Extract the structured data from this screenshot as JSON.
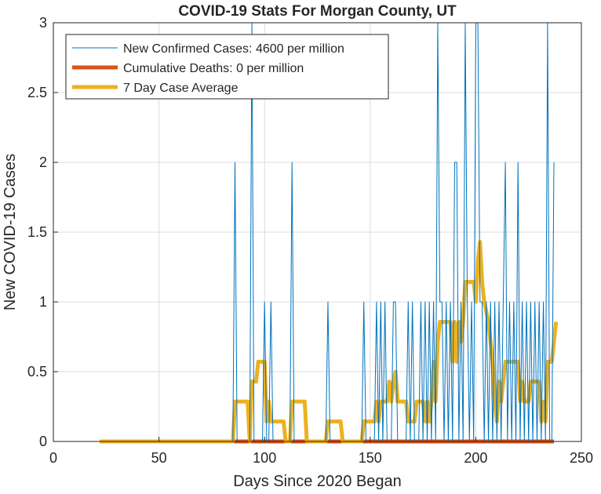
{
  "chart_data": {
    "type": "line",
    "title": "COVID-19 Stats For Morgan County, UT",
    "xlabel": "Days Since 2020 Began",
    "ylabel": "New COVID-19 Cases",
    "xlim": [
      0,
      250
    ],
    "ylim": [
      0,
      3
    ],
    "xticks": [
      "0",
      "50",
      "100",
      "150",
      "200",
      "250"
    ],
    "yticks": [
      "0",
      "0.5",
      "1",
      "1.5",
      "2",
      "2.5",
      "3"
    ],
    "grid": true,
    "legend_position": "top-left",
    "series": [
      {
        "name": "New Confirmed Cases: 4600 per million",
        "color": "#0072BD",
        "points": [
          [
            22,
            0
          ],
          [
            85,
            0
          ],
          [
            86,
            2
          ],
          [
            87,
            0
          ],
          [
            93,
            0
          ],
          [
            94,
            3
          ],
          [
            95,
            0
          ],
          [
            99,
            0
          ],
          [
            100,
            1
          ],
          [
            101,
            0
          ],
          [
            102,
            0
          ],
          [
            103,
            1
          ],
          [
            104,
            0
          ],
          [
            112,
            0
          ],
          [
            113,
            2
          ],
          [
            114,
            0
          ],
          [
            129,
            0
          ],
          [
            130,
            1
          ],
          [
            131,
            0
          ],
          [
            146,
            0
          ],
          [
            147,
            1
          ],
          [
            148,
            0
          ],
          [
            152,
            0
          ],
          [
            153,
            1
          ],
          [
            154,
            0
          ],
          [
            155,
            1
          ],
          [
            156,
            0
          ],
          [
            157,
            1
          ],
          [
            158,
            0
          ],
          [
            160,
            0
          ],
          [
            161,
            1
          ],
          [
            162,
            1
          ],
          [
            163,
            0
          ],
          [
            167,
            0
          ],
          [
            168,
            1
          ],
          [
            169,
            0
          ],
          [
            170,
            1
          ],
          [
            171,
            0
          ],
          [
            173,
            0
          ],
          [
            174,
            1
          ],
          [
            175,
            0
          ],
          [
            176,
            1
          ],
          [
            177,
            0
          ],
          [
            178,
            1
          ],
          [
            179,
            0
          ],
          [
            180,
            1
          ],
          [
            181,
            0
          ],
          [
            182,
            3
          ],
          [
            183,
            1
          ],
          [
            184,
            1
          ],
          [
            185,
            0
          ],
          [
            186,
            1
          ],
          [
            187,
            0
          ],
          [
            188,
            1
          ],
          [
            189,
            0
          ],
          [
            190,
            2
          ],
          [
            191,
            2
          ],
          [
            192,
            0
          ],
          [
            193,
            1
          ],
          [
            194,
            0
          ],
          [
            195,
            3
          ],
          [
            196,
            1
          ],
          [
            197,
            0
          ],
          [
            198,
            1
          ],
          [
            199,
            0
          ],
          [
            200,
            3
          ],
          [
            201,
            3
          ],
          [
            202,
            1
          ],
          [
            203,
            1
          ],
          [
            204,
            0
          ],
          [
            205,
            1
          ],
          [
            206,
            0
          ],
          [
            207,
            1
          ],
          [
            208,
            0
          ],
          [
            209,
            1
          ],
          [
            210,
            0
          ],
          [
            211,
            1
          ],
          [
            212,
            0
          ],
          [
            213,
            1
          ],
          [
            214,
            2
          ],
          [
            215,
            0
          ],
          [
            216,
            1
          ],
          [
            217,
            0
          ],
          [
            218,
            1
          ],
          [
            219,
            0
          ],
          [
            220,
            2
          ],
          [
            221,
            0
          ],
          [
            222,
            1
          ],
          [
            223,
            0
          ],
          [
            224,
            1
          ],
          [
            225,
            0
          ],
          [
            226,
            1
          ],
          [
            227,
            0
          ],
          [
            228,
            1
          ],
          [
            229,
            0
          ],
          [
            230,
            1
          ],
          [
            231,
            0
          ],
          [
            232,
            1
          ],
          [
            233,
            0
          ],
          [
            234,
            3
          ],
          [
            235,
            0
          ],
          [
            236,
            0
          ],
          [
            237,
            2
          ]
        ]
      },
      {
        "name": "Cumulative Deaths: 0 per million",
        "color": "#D95319",
        "points": [
          [
            22,
            0
          ],
          [
            237,
            0
          ]
        ]
      },
      {
        "name": "7 Day Case Average",
        "color": "#EDB120",
        "points": [
          [
            22,
            0
          ],
          [
            85,
            0
          ],
          [
            86,
            0.286
          ],
          [
            92,
            0.286
          ],
          [
            93,
            0
          ],
          [
            94,
            0.429
          ],
          [
            96,
            0.429
          ],
          [
            97,
            0.571
          ],
          [
            100,
            0.571
          ],
          [
            101,
            0.143
          ],
          [
            102,
            0.286
          ],
          [
            103,
            0.143
          ],
          [
            108,
            0.143
          ],
          [
            109,
            0.143
          ],
          [
            110,
            0
          ],
          [
            112,
            0
          ],
          [
            113,
            0.286
          ],
          [
            119,
            0.286
          ],
          [
            120,
            0
          ],
          [
            129,
            0
          ],
          [
            130,
            0.143
          ],
          [
            136,
            0.143
          ],
          [
            137,
            0
          ],
          [
            146,
            0
          ],
          [
            147,
            0.143
          ],
          [
            152,
            0.143
          ],
          [
            153,
            0.286
          ],
          [
            154,
            0.143
          ],
          [
            155,
            0.286
          ],
          [
            157,
            0.286
          ],
          [
            158,
            0.286
          ],
          [
            159,
            0.429
          ],
          [
            160,
            0.286
          ],
          [
            161,
            0.429
          ],
          [
            162,
            0.5
          ],
          [
            163,
            0.286
          ],
          [
            167,
            0.286
          ],
          [
            168,
            0.143
          ],
          [
            171,
            0.143
          ],
          [
            172,
            0.286
          ],
          [
            175,
            0.286
          ],
          [
            176,
            0.143
          ],
          [
            177,
            0.286
          ],
          [
            178,
            0.143
          ],
          [
            179,
            0.286
          ],
          [
            180,
            0.571
          ],
          [
            181,
            0.286
          ],
          [
            182,
            0.714
          ],
          [
            183,
            0.857
          ],
          [
            188,
            0.857
          ],
          [
            189,
            0.571
          ],
          [
            190,
            0.857
          ],
          [
            191,
            0.571
          ],
          [
            192,
            0.857
          ],
          [
            193,
            0.714
          ],
          [
            194,
            0.857
          ],
          [
            195,
            1.143
          ],
          [
            199,
            1.143
          ],
          [
            200,
            1
          ],
          [
            201,
            1.286
          ],
          [
            202,
            1.429
          ],
          [
            203,
            1.143
          ],
          [
            204,
            1
          ],
          [
            206,
            0.857
          ],
          [
            207,
            0.714
          ],
          [
            208,
            0.571
          ],
          [
            209,
            0.286
          ],
          [
            210,
            0.143
          ],
          [
            211,
            0.429
          ],
          [
            212,
            0.286
          ],
          [
            213,
            0.429
          ],
          [
            214,
            0.571
          ],
          [
            220,
            0.571
          ],
          [
            221,
            0.286
          ],
          [
            222,
            0.429
          ],
          [
            223,
            0.286
          ],
          [
            225,
            0.286
          ],
          [
            226,
            0.429
          ],
          [
            230,
            0.429
          ],
          [
            231,
            0.143
          ],
          [
            232,
            0.286
          ],
          [
            233,
            0.143
          ],
          [
            234,
            0.571
          ],
          [
            236,
            0.571
          ],
          [
            237,
            0.714
          ],
          [
            238,
            0.857
          ]
        ]
      }
    ]
  }
}
